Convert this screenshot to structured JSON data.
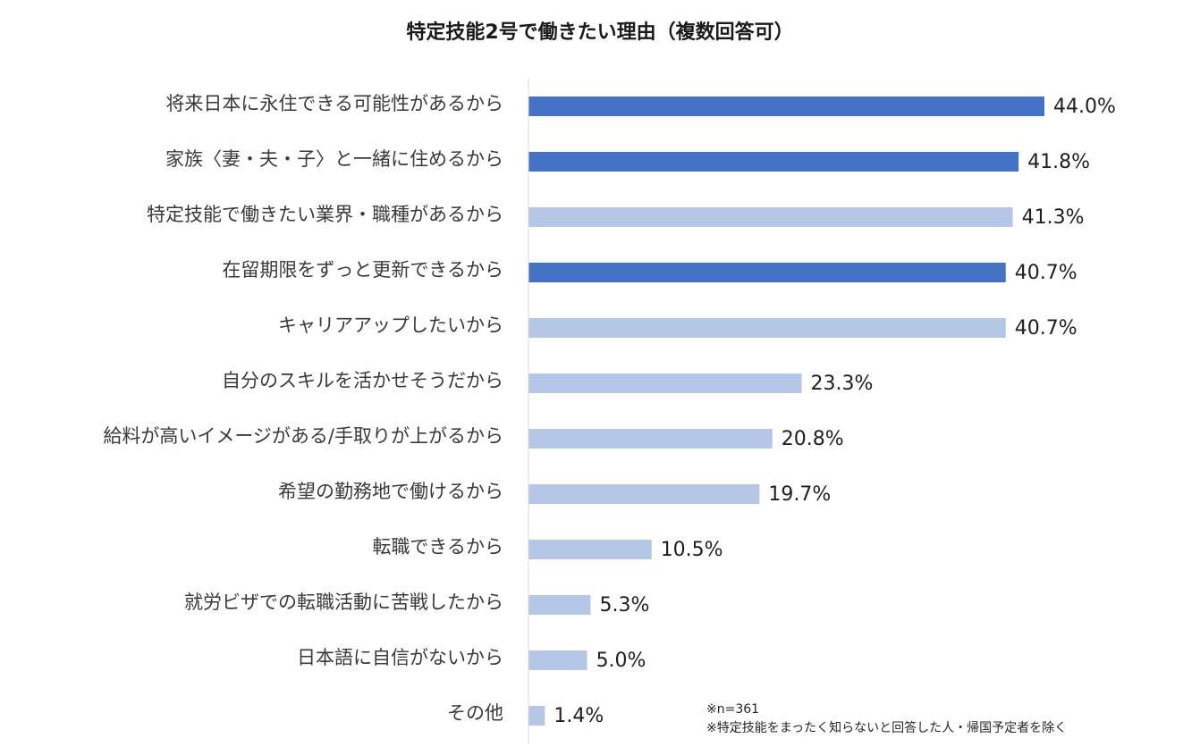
{
  "chart_data": {
    "type": "bar",
    "orientation": "horizontal",
    "title": "特定技能2号で働きたい理由（複数回答可）",
    "categories": [
      "将来日本に永住できる可能性があるから",
      "家族〈妻・夫・子〉と一緒に住めるから",
      "特定技能で働きたい業界・職種があるから",
      "在留期限をずっと更新できるから",
      "キャリアアップしたいから",
      "自分のスキルを活かせそうだから",
      "給料が高いイメージがある/手取りが上がるから",
      "希望の勤務地で働けるから",
      "転職できるから",
      "就労ビザでの転職活動に苦戦したから",
      "日本語に自信がないから",
      "その他"
    ],
    "values": [
      44.0,
      41.8,
      41.3,
      40.7,
      40.7,
      23.3,
      20.8,
      19.7,
      10.5,
      5.3,
      5.0,
      1.4
    ],
    "value_labels": [
      "44.0%",
      "41.8%",
      "41.3%",
      "40.7%",
      "40.7%",
      "23.3%",
      "20.8%",
      "19.7%",
      "10.5%",
      "5.3%",
      "5.0%",
      "1.4%"
    ],
    "highlighted": [
      true,
      true,
      false,
      true,
      false,
      false,
      false,
      false,
      false,
      false,
      false,
      false
    ],
    "colors": {
      "highlight": "#4472C4",
      "normal": "#B4C7E7",
      "axis": "#D9D9D9"
    },
    "xlim": [
      0,
      50
    ],
    "xlabel": "",
    "ylabel": "",
    "grid": false,
    "legend": "none"
  },
  "notes": {
    "sample_size": "※n=361",
    "exclusion": "※特定技能をまったく知らないと回答した人・帰国予定者を除く"
  }
}
